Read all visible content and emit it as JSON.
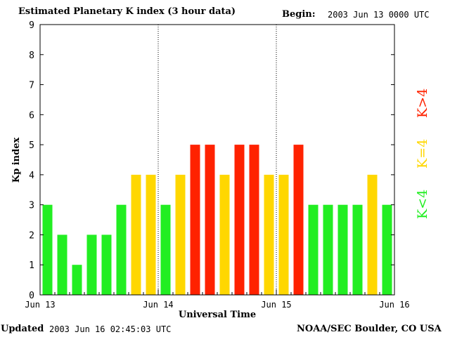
{
  "header": {
    "title": "Estimated Planetary K index (3 hour data)",
    "begin_label": "Begin:",
    "begin_value": "2003 Jun 13 0000 UTC"
  },
  "footer": {
    "updated_label": "Updated",
    "updated_value": "2003 Jun 16 02:45:03 UTC",
    "credit": "NOAA/SEC Boulder, CO USA"
  },
  "legend": {
    "high": "K>4",
    "equal": "K=4",
    "low": "K<4"
  },
  "colors": {
    "low": "#22ee22",
    "equal": "#ffd700",
    "high": "#ff2200",
    "axis": "#000000"
  },
  "chart_data": {
    "type": "bar",
    "title": "Estimated Planetary K index (3 hour data)",
    "xlabel": "Universal Time",
    "ylabel": "Kp index",
    "ylim": [
      0,
      9
    ],
    "yticks": [
      0,
      1,
      2,
      3,
      4,
      5,
      6,
      7,
      8,
      9
    ],
    "x_tick_labels": [
      "Jun 13",
      "Jun 14",
      "Jun 15",
      "Jun 16"
    ],
    "day_dividers": [
      "Jun 14",
      "Jun 15"
    ],
    "bar_slots_per_day": 8,
    "values": [
      3,
      2,
      1,
      2,
      2,
      3,
      4,
      4,
      3,
      4,
      5,
      5,
      4,
      5,
      5,
      4,
      4,
      5,
      3,
      3,
      3,
      3,
      4,
      3
    ],
    "thresholds": {
      "low": "K<4",
      "equal": "K=4",
      "high": "K>4"
    }
  }
}
